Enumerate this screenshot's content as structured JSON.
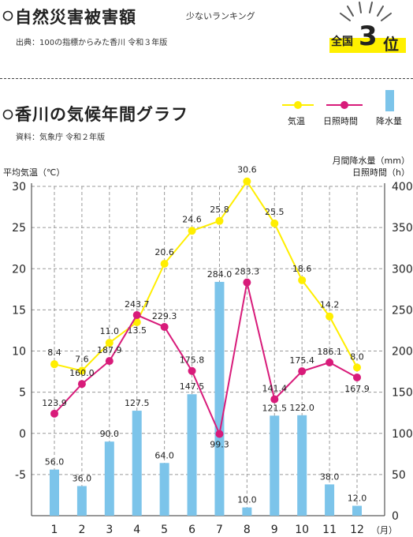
{
  "header": {
    "title": "自然災害被害額",
    "subtitle": "少ないランキング",
    "source": "出典：100の指標からみた香川 令和３年版",
    "rank_prefix": "全国",
    "rank_number": "3",
    "rank_unit": "位"
  },
  "section": {
    "title": "香川の気候年間グラフ",
    "source": "資料：気象庁 令和２年版"
  },
  "legend": {
    "temp": "気温",
    "sunshine": "日照時間",
    "rain": "降水量"
  },
  "axis": {
    "left_title": "平均気温（℃）",
    "right_title_1": "月間降水量（mm）",
    "right_title_2": "日照時間（h）",
    "month_unit": "（月）"
  },
  "colors": {
    "temp": "#ffee00",
    "sunshine": "#d81b7a",
    "rain": "#7cc4ea",
    "grid": "#9a9a9a",
    "rank_accent": "#fff000"
  },
  "chart_data": {
    "type": "bar",
    "categories": [
      "1",
      "2",
      "3",
      "4",
      "5",
      "6",
      "7",
      "8",
      "9",
      "10",
      "11",
      "12"
    ],
    "left_axis": {
      "ylim": [
        -10,
        30
      ],
      "ticks": [
        -5,
        0,
        5,
        10,
        15,
        20,
        25,
        30
      ]
    },
    "right_axis": {
      "ylim": [
        0,
        400
      ],
      "ticks": [
        0,
        50,
        100,
        150,
        200,
        250,
        300,
        350,
        400
      ]
    },
    "series": [
      {
        "name": "降水量",
        "type": "bar",
        "axis": "right",
        "values": [
          56.0,
          36.0,
          90.0,
          127.5,
          64.0,
          147.5,
          284.0,
          10.0,
          121.5,
          122.0,
          38.0,
          12.0
        ]
      },
      {
        "name": "気温",
        "type": "line",
        "axis": "left",
        "values": [
          8.4,
          7.6,
          11.0,
          13.5,
          20.6,
          24.6,
          25.8,
          30.6,
          25.5,
          18.6,
          14.2,
          8.0
        ]
      },
      {
        "name": "日照時間",
        "type": "line",
        "axis": "right",
        "values": [
          123.9,
          160.0,
          187.9,
          243.7,
          229.3,
          175.8,
          99.3,
          283.3,
          141.4,
          175.4,
          186.1,
          167.9
        ]
      }
    ],
    "grid": true
  }
}
